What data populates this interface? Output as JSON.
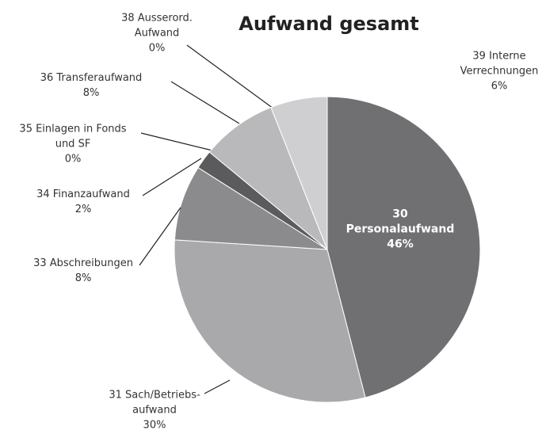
{
  "chart_data": {
    "type": "pie",
    "title": "Aufwand gesamt",
    "categories": [
      "30 Personalaufwand",
      "31 Sach/Betriebs-aufwand",
      "33 Abschreibungen",
      "34 Finanzaufwand",
      "35 Einlagen in Fonds und SF",
      "36 Transferaufwand",
      "38 Ausserord. Aufwand",
      "39 Interne Verrechnungen"
    ],
    "values": [
      46,
      30,
      8,
      2,
      0,
      8,
      0,
      6
    ],
    "value_labels": [
      "46%",
      "30%",
      "8%",
      "2%",
      "0%",
      "8%",
      "0%",
      "6%"
    ],
    "colors": [
      "#707073",
      "#a9a9ab",
      "#8b8b8d",
      "#5b5b5d",
      "#444446",
      "#b9b9bb",
      "#8a8a8c",
      "#cfcfd1"
    ]
  }
}
